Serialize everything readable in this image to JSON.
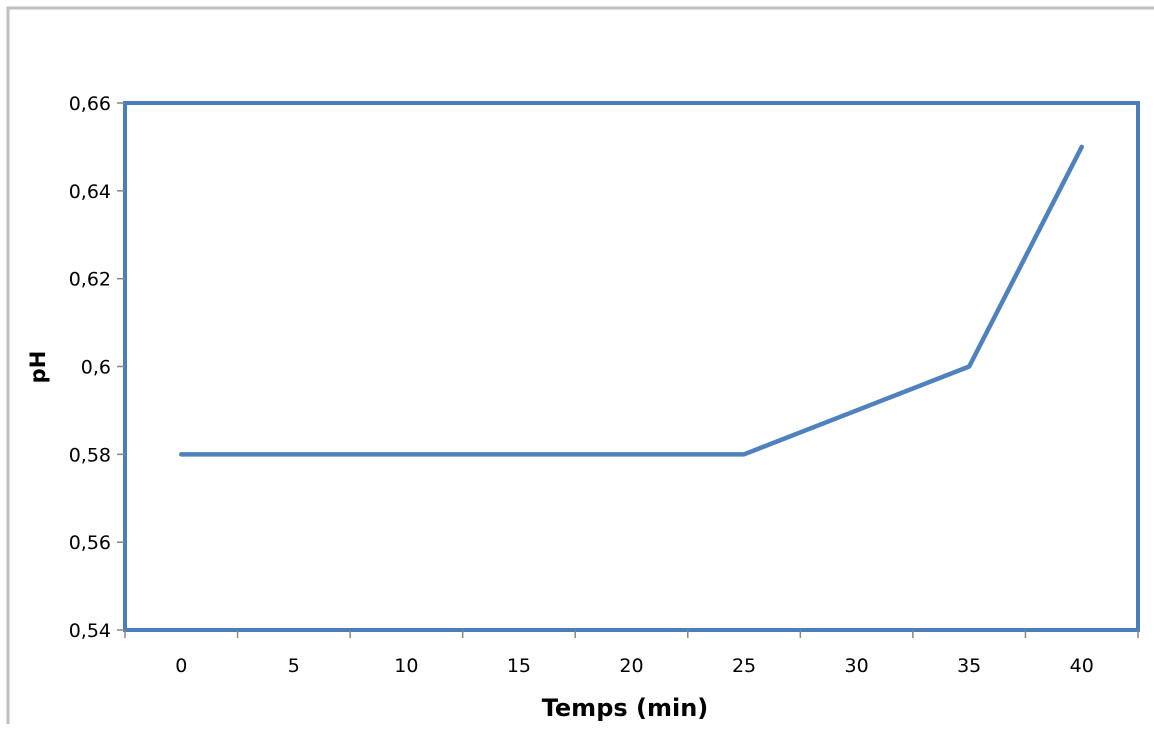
{
  "chart_data": {
    "type": "line",
    "title": "",
    "xlabel": "Temps (min)",
    "ylabel": "pH",
    "categories": [
      "0",
      "5",
      "10",
      "15",
      "20",
      "25",
      "30",
      "35",
      "40"
    ],
    "series": [
      {
        "values": [
          0.58,
          0.58,
          0.58,
          0.58,
          0.58,
          0.58,
          0.59,
          0.6,
          0.65
        ]
      }
    ],
    "ylim": [
      0.54,
      0.66
    ],
    "yticks": [
      0.54,
      0.56,
      0.58,
      0.6,
      0.62,
      0.64,
      0.66
    ],
    "ytick_labels": [
      "0,54",
      "0,56",
      "0,58",
      "0,6",
      "0,62",
      "0,64",
      "0,66"
    ],
    "grid": false,
    "legend": "none",
    "colors": {
      "series_line": "#4F81BD",
      "plot_border": "#4A7EBB",
      "chart_border": "#BFBFBF",
      "axis": "#868686"
    }
  }
}
